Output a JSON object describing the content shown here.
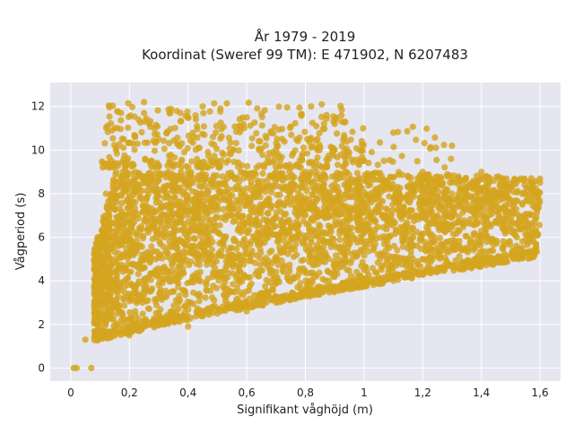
{
  "chart_data": {
    "type": "scatter",
    "title_line1": "År 1979 - 2019",
    "title_line2": "Koordinat (Sweref 99 TM): E 471902, N 6207483",
    "xlabel": "Signifikant våghöjd (m)",
    "ylabel": "Vågperiod (s)",
    "xlim": [
      -0.07,
      1.67
    ],
    "ylim": [
      -0.6,
      13.1
    ],
    "x_ticks": [
      0,
      0.2,
      0.4,
      0.6,
      0.8,
      1,
      1.2,
      1.4,
      1.6
    ],
    "x_tick_labels": [
      "0",
      "0,2",
      "0,4",
      "0,6",
      "0,8",
      "1",
      "1,2",
      "1,4",
      "1,6"
    ],
    "y_ticks": [
      0,
      2,
      4,
      6,
      8,
      10,
      12
    ],
    "y_tick_labels": [
      "0",
      "2",
      "4",
      "6",
      "8",
      "10",
      "12"
    ],
    "grid": true,
    "legend": "none",
    "colors": {
      "marker": "#d4a520",
      "plot_background": "#e5e6f0",
      "grid": "#ffffff"
    },
    "point_count": "about 4,000 visible markers (dense cloud)",
    "x": [
      0.05,
      0.08,
      0.08,
      0.1,
      0.12,
      0.12,
      0.15,
      0.15,
      0.18,
      0.2,
      0.22,
      0.25,
      0.25,
      0.28,
      0.3,
      0.3,
      0.35,
      0.35,
      0.4,
      0.4,
      0.45,
      0.45,
      0.5,
      0.5,
      0.55,
      0.6,
      0.6,
      0.65,
      0.7,
      0.7,
      0.75,
      0.8,
      0.8,
      0.85,
      0.9,
      0.9,
      0.95,
      1.0,
      1.0,
      1.05,
      1.1,
      1.1,
      1.15,
      1.2,
      1.2,
      1.25,
      1.3,
      1.3,
      1.35,
      1.4,
      1.4,
      1.45,
      1.5,
      1.5,
      1.55,
      1.6,
      0.1,
      0.12,
      0.14,
      0.16,
      0.18,
      0.2,
      0.24,
      0.28,
      0.32,
      0.36,
      0.4,
      0.46,
      0.52,
      0.58,
      0.64,
      0.7,
      0.76,
      0.82,
      0.88,
      0.94,
      1.0,
      1.06,
      1.12,
      1.18,
      1.24,
      1.3,
      1.36,
      1.42,
      1.48,
      1.54,
      0.01,
      0.02,
      0.07
    ],
    "y": [
      1.3,
      1.4,
      2.5,
      3.5,
      5.0,
      8.0,
      6.0,
      11.0,
      7.0,
      1.5,
      9.0,
      4.0,
      12.2,
      6.5,
      2.0,
      10.5,
      3.5,
      8.5,
      1.9,
      11.5,
      5.5,
      12.0,
      2.5,
      9.5,
      7.0,
      2.6,
      11.5,
      6.0,
      3.0,
      10.0,
      7.5,
      3.3,
      9.0,
      6.5,
      3.6,
      11.2,
      8.0,
      4.5,
      9.5,
      7.2,
      4.8,
      10.8,
      8.3,
      5.0,
      9.0,
      7.0,
      5.5,
      10.2,
      8.0,
      6.0,
      9.0,
      7.5,
      6.5,
      8.3,
      8.0,
      8.5,
      1.4,
      4.0,
      9.5,
      6.8,
      10.5,
      7.5,
      5.0,
      8.2,
      6.0,
      8.8,
      7.0,
      9.3,
      8.0,
      9.0,
      8.5,
      9.0,
      8.2,
      9.0,
      8.0,
      9.0,
      7.5,
      8.8,
      8.0,
      8.5,
      8.2,
      8.0,
      8.3,
      7.8,
      8.0,
      7.5,
      0.0,
      0.0,
      0.0
    ]
  }
}
